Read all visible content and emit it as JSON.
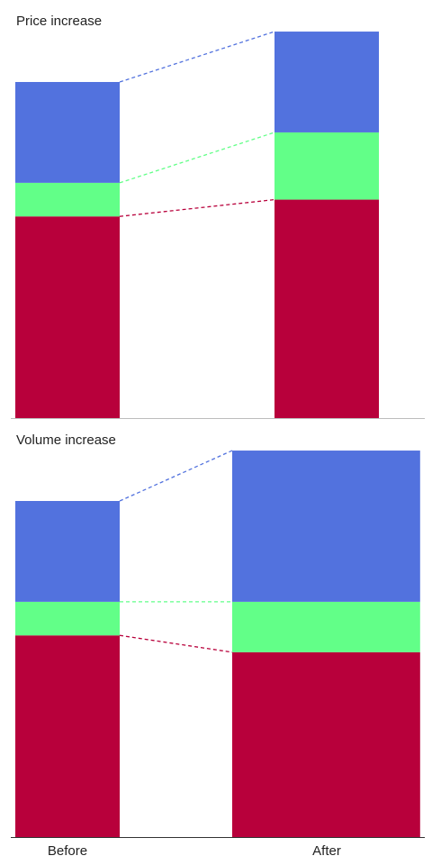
{
  "chart_data": {
    "type": "bar",
    "colors": {
      "red": "#b8003b",
      "green": "#62ff88",
      "blue": "#5272de",
      "axis_light": "#bdbdbd",
      "axis_dark": "#333333"
    },
    "categories": [
      "Before",
      "After"
    ],
    "panels": [
      {
        "title": "Price increase",
        "width_ratio": [
          1,
          1
        ],
        "stacks": [
          [
            {
              "color": "red",
              "value": 60
            },
            {
              "color": "green",
              "value": 10
            },
            {
              "color": "blue",
              "value": 30
            }
          ],
          [
            {
              "color": "red",
              "value": 65
            },
            {
              "color": "green",
              "value": 20
            },
            {
              "color": "blue",
              "value": 30
            }
          ]
        ]
      },
      {
        "title": "Volume increase",
        "width_ratio": [
          1,
          1.8
        ],
        "stacks": [
          [
            {
              "color": "red",
              "value": 60
            },
            {
              "color": "green",
              "value": 10
            },
            {
              "color": "blue",
              "value": 30
            }
          ],
          [
            {
              "color": "red",
              "value": 55
            },
            {
              "color": "green",
              "value": 15
            },
            {
              "color": "blue",
              "value": 45
            }
          ]
        ]
      }
    ]
  }
}
